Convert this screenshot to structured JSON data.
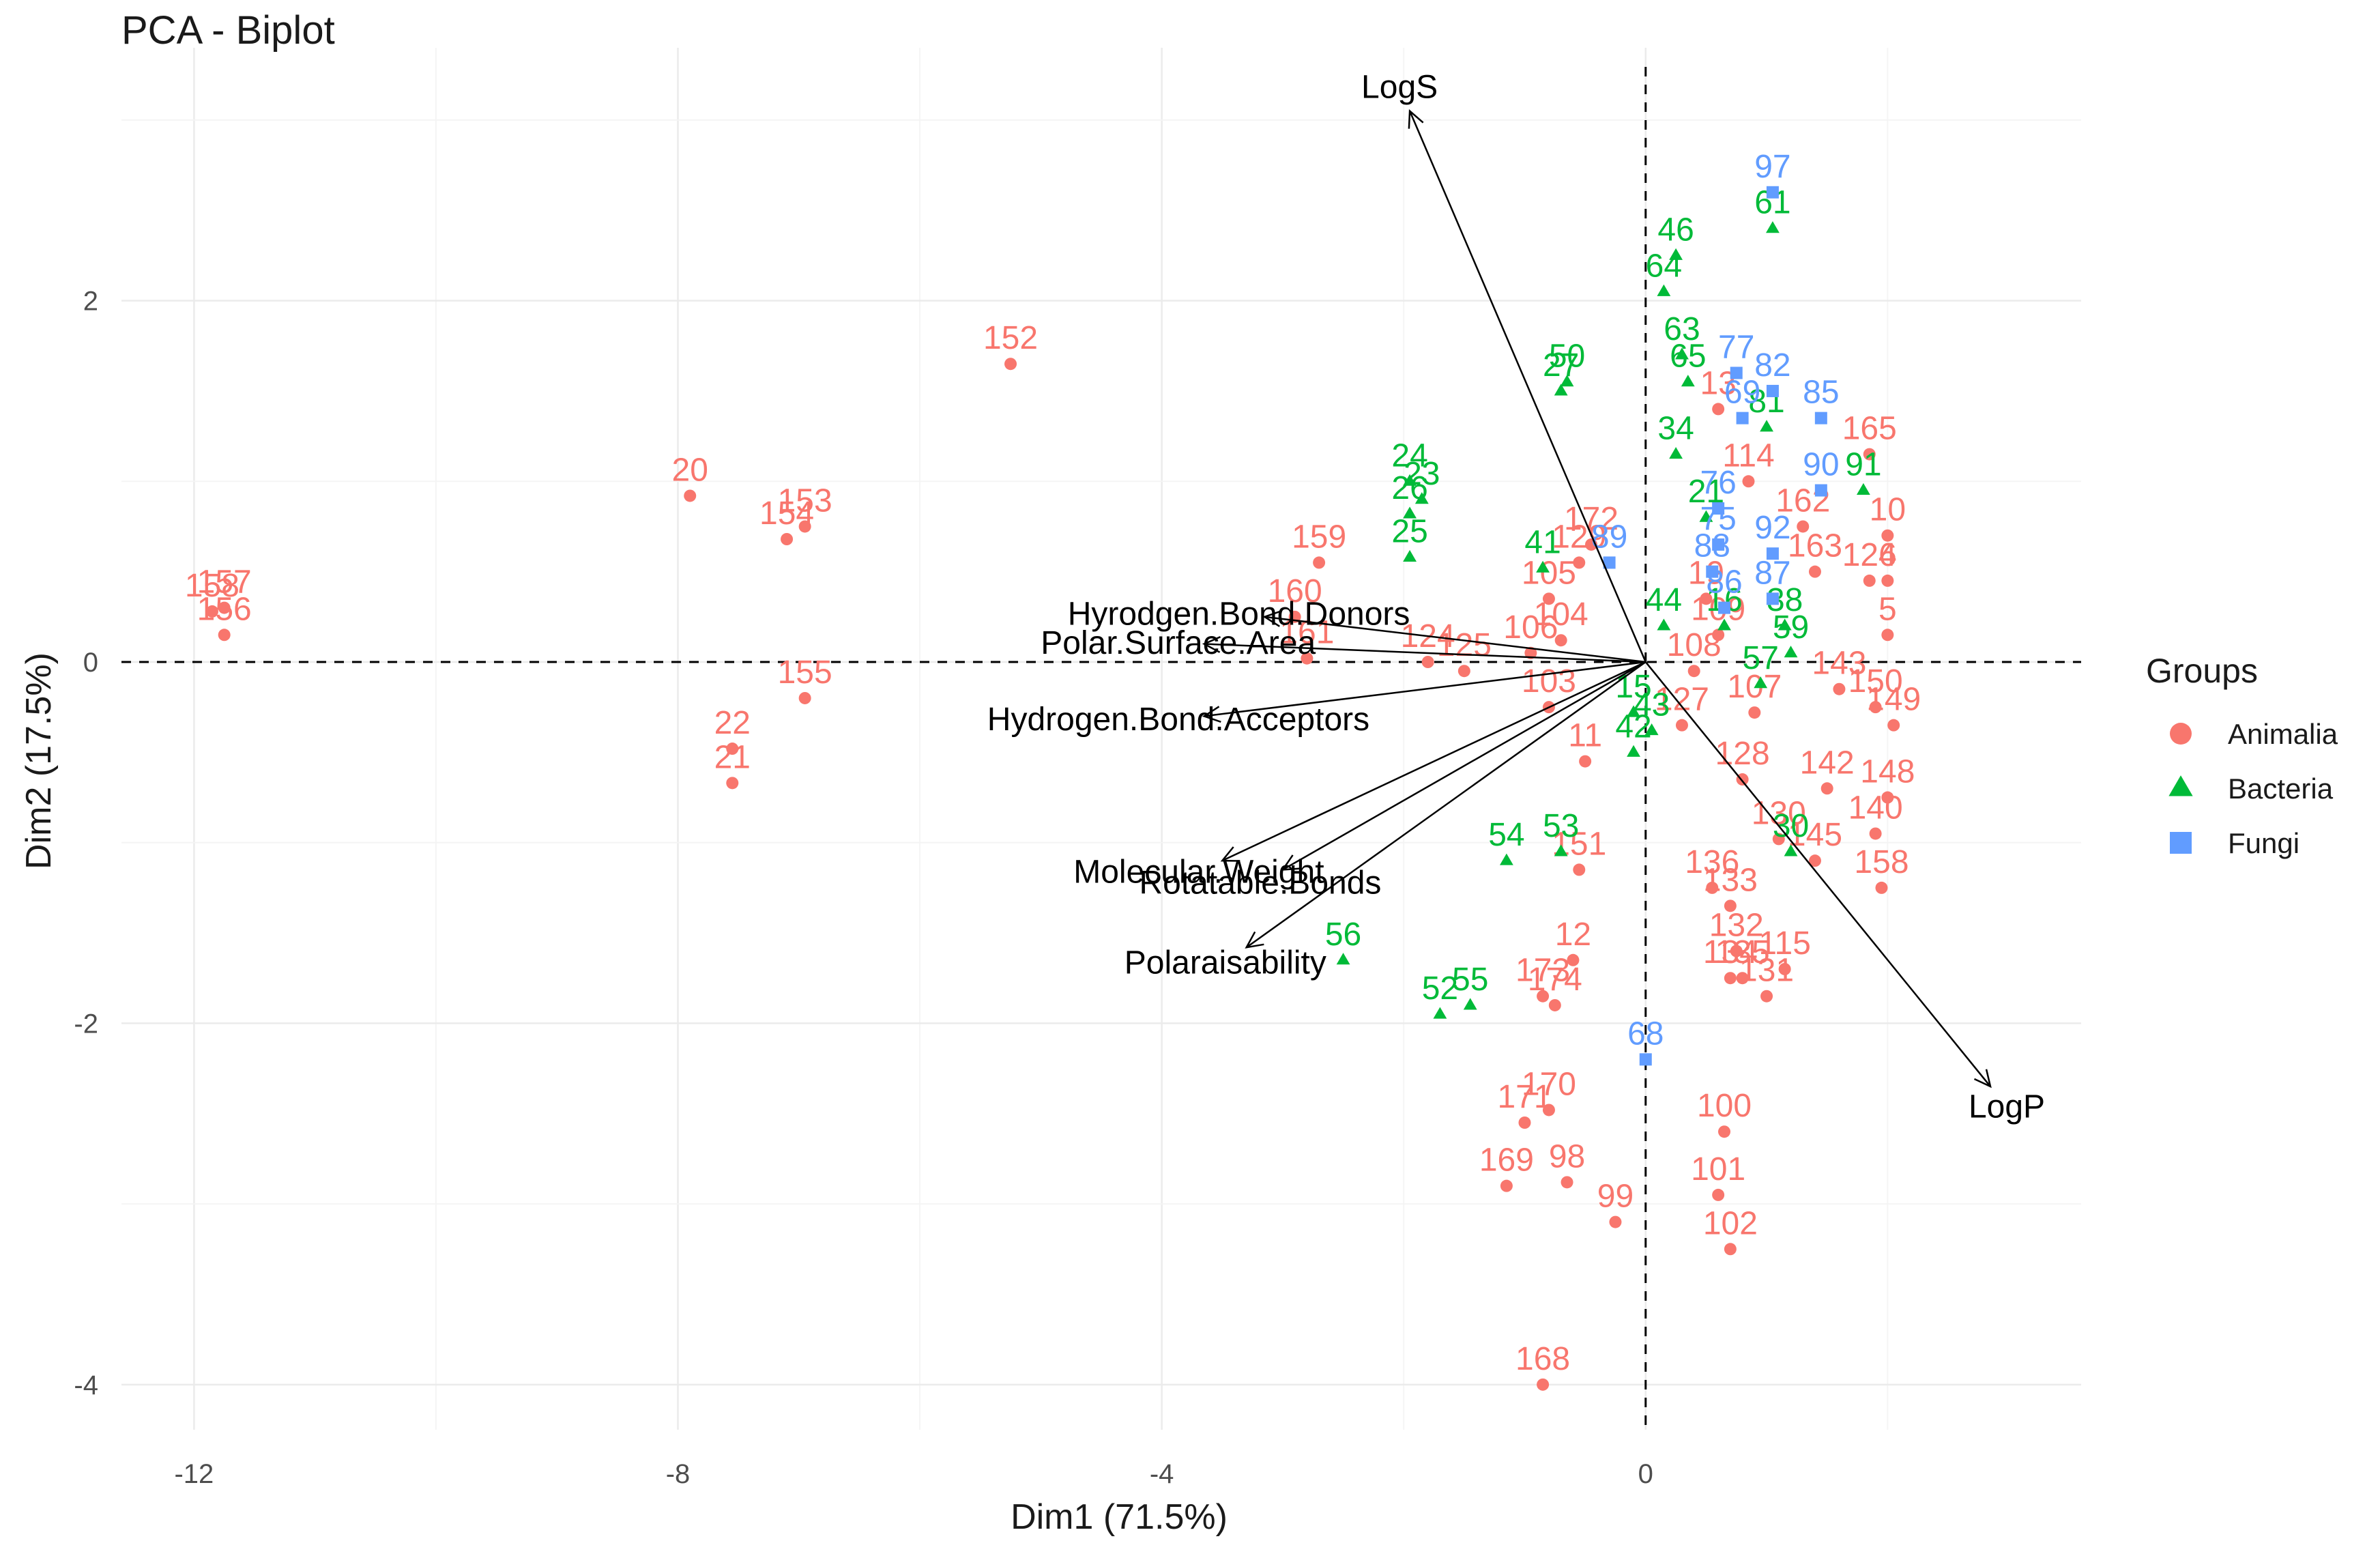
{
  "chart_data": {
    "type": "scatter",
    "title": "PCA - Biplot",
    "xlabel": "Dim1 (71.5%)",
    "ylabel": "Dim2 (17.5%)",
    "xlim": [
      -12.6,
      3.6
    ],
    "ylim": [
      -4.25,
      3.4
    ],
    "xticks": [
      -12,
      -8,
      -4,
      0
    ],
    "yticks": [
      -4,
      -2,
      0,
      2
    ],
    "legend": {
      "title": "Groups",
      "position": "right",
      "entries": [
        {
          "name": "Animalia",
          "color": "#F8766D",
          "shape": "circle"
        },
        {
          "name": "Bacteria",
          "color": "#00BA38",
          "shape": "triangle"
        },
        {
          "name": "Fungi",
          "color": "#619CFF",
          "shape": "square"
        }
      ]
    },
    "variables": [
      {
        "name": "LogS",
        "x": -1.95,
        "y": 3.05
      },
      {
        "name": "LogP",
        "x": 2.85,
        "y": -2.35
      },
      {
        "name": "Hyrodgen.Bond.Donors",
        "x": -3.15,
        "y": 0.25
      },
      {
        "name": "Polar.Surface.Area",
        "x": -3.65,
        "y": 0.1
      },
      {
        "name": "Hydrogen.Bond.Acceptors",
        "x": -3.65,
        "y": -0.3
      },
      {
        "name": "Molecular.Weight",
        "x": -3.5,
        "y": -1.1
      },
      {
        "name": "Rotatable.Bonds",
        "x": -3.0,
        "y": -1.15
      },
      {
        "name": "Polaraisability",
        "x": -3.3,
        "y": -1.58
      }
    ],
    "series": [
      {
        "name": "Animalia",
        "points": [
          {
            "label": "152",
            "x": -5.25,
            "y": 1.65
          },
          {
            "label": "20",
            "x": -7.9,
            "y": 0.92
          },
          {
            "label": "153",
            "x": -6.95,
            "y": 0.75
          },
          {
            "label": "154",
            "x": -7.1,
            "y": 0.68
          },
          {
            "label": "157",
            "x": -11.75,
            "y": 0.3
          },
          {
            "label": "158",
            "x": -11.85,
            "y": 0.28
          },
          {
            "label": "156",
            "x": -11.75,
            "y": 0.15
          },
          {
            "label": "155",
            "x": -6.95,
            "y": -0.2
          },
          {
            "label": "22",
            "x": -7.55,
            "y": -0.48
          },
          {
            "label": "21",
            "x": -7.55,
            "y": -0.67
          },
          {
            "label": "159",
            "x": -2.7,
            "y": 0.55
          },
          {
            "label": "160",
            "x": -2.9,
            "y": 0.25
          },
          {
            "label": "161",
            "x": -2.8,
            "y": 0.02
          },
          {
            "label": "124",
            "x": -1.8,
            "y": 0.0
          },
          {
            "label": "125",
            "x": -1.5,
            "y": -0.05
          },
          {
            "label": "105",
            "x": -0.8,
            "y": 0.35
          },
          {
            "label": "104",
            "x": -0.7,
            "y": 0.12
          },
          {
            "label": "106",
            "x": -0.95,
            "y": 0.05
          },
          {
            "label": "103",
            "x": -0.8,
            "y": -0.25
          },
          {
            "label": "172",
            "x": -0.45,
            "y": 0.65
          },
          {
            "label": "129",
            "x": -0.55,
            "y": 0.55
          },
          {
            "label": "11",
            "x": -0.5,
            "y": -0.55
          },
          {
            "label": "127",
            "x": 0.3,
            "y": -0.35
          },
          {
            "label": "151",
            "x": -0.55,
            "y": -1.15
          },
          {
            "label": "12",
            "x": -0.6,
            "y": -1.65
          },
          {
            "label": "173",
            "x": -0.85,
            "y": -1.85
          },
          {
            "label": "174",
            "x": -0.75,
            "y": -1.9
          },
          {
            "label": "171",
            "x": -1.0,
            "y": -2.55
          },
          {
            "label": "170",
            "x": -0.8,
            "y": -2.48
          },
          {
            "label": "169",
            "x": -1.15,
            "y": -2.9
          },
          {
            "label": "98",
            "x": -0.65,
            "y": -2.88
          },
          {
            "label": "99",
            "x": -0.25,
            "y": -3.1
          },
          {
            "label": "168",
            "x": -0.85,
            "y": -4.0
          },
          {
            "label": "100",
            "x": 0.65,
            "y": -2.6
          },
          {
            "label": "101",
            "x": 0.6,
            "y": -2.95
          },
          {
            "label": "102",
            "x": 0.7,
            "y": -3.25
          },
          {
            "label": "136",
            "x": 0.55,
            "y": -1.25
          },
          {
            "label": "133",
            "x": 0.7,
            "y": -1.35
          },
          {
            "label": "132",
            "x": 0.75,
            "y": -1.6
          },
          {
            "label": "115",
            "x": 1.15,
            "y": -1.7
          },
          {
            "label": "134",
            "x": 0.7,
            "y": -1.75
          },
          {
            "label": "135",
            "x": 0.8,
            "y": -1.75
          },
          {
            "label": "131",
            "x": 1.0,
            "y": -1.85
          },
          {
            "label": "128",
            "x": 0.8,
            "y": -0.65
          },
          {
            "label": "130",
            "x": 1.1,
            "y": -0.98
          },
          {
            "label": "145",
            "x": 1.4,
            "y": -1.1
          },
          {
            "label": "158",
            "x": 1.95,
            "y": -1.25
          },
          {
            "label": "140",
            "x": 1.9,
            "y": -0.95
          },
          {
            "label": "142",
            "x": 1.5,
            "y": -0.7
          },
          {
            "label": "148",
            "x": 2.0,
            "y": -0.75
          },
          {
            "label": "150",
            "x": 1.9,
            "y": -0.25
          },
          {
            "label": "149",
            "x": 2.05,
            "y": -0.35
          },
          {
            "label": "143",
            "x": 1.6,
            "y": -0.15
          },
          {
            "label": "107",
            "x": 0.9,
            "y": -0.28
          },
          {
            "label": "108",
            "x": 0.4,
            "y": -0.05
          },
          {
            "label": "109",
            "x": 0.6,
            "y": 0.15
          },
          {
            "label": "165",
            "x": 1.85,
            "y": 1.15
          },
          {
            "label": "162",
            "x": 1.3,
            "y": 0.75
          },
          {
            "label": "10",
            "x": 2.0,
            "y": 0.7
          },
          {
            "label": "163",
            "x": 1.4,
            "y": 0.5
          },
          {
            "label": "126",
            "x": 1.85,
            "y": 0.45
          },
          {
            "label": "4",
            "x": 2.0,
            "y": 0.45
          },
          {
            "label": "5",
            "x": 2.0,
            "y": 0.15
          },
          {
            "label": "13",
            "x": 0.6,
            "y": 1.4
          },
          {
            "label": "114",
            "x": 0.85,
            "y": 1.0
          },
          {
            "label": "19",
            "x": 0.5,
            "y": 0.35
          }
        ]
      },
      {
        "name": "Bacteria",
        "points": [
          {
            "label": "61",
            "x": 1.05,
            "y": 2.4
          },
          {
            "label": "46",
            "x": 0.25,
            "y": 2.25
          },
          {
            "label": "64",
            "x": 0.15,
            "y": 2.05
          },
          {
            "label": "50",
            "x": -0.65,
            "y": 1.55
          },
          {
            "label": "27",
            "x": -0.7,
            "y": 1.5
          },
          {
            "label": "63",
            "x": 0.3,
            "y": 1.7
          },
          {
            "label": "65",
            "x": 0.35,
            "y": 1.55
          },
          {
            "label": "34",
            "x": 0.25,
            "y": 1.15
          },
          {
            "label": "24",
            "x": -1.95,
            "y": 1.0
          },
          {
            "label": "23",
            "x": -1.85,
            "y": 0.9
          },
          {
            "label": "26",
            "x": -1.95,
            "y": 0.82
          },
          {
            "label": "25",
            "x": -1.95,
            "y": 0.58
          },
          {
            "label": "41",
            "x": -0.85,
            "y": 0.52
          },
          {
            "label": "21",
            "x": 0.5,
            "y": 0.8
          },
          {
            "label": "44",
            "x": 0.15,
            "y": 0.2
          },
          {
            "label": "16",
            "x": 0.65,
            "y": 0.2
          },
          {
            "label": "38",
            "x": 1.15,
            "y": 0.2
          },
          {
            "label": "15",
            "x": -0.1,
            "y": -0.28
          },
          {
            "label": "43",
            "x": 0.05,
            "y": -0.38
          },
          {
            "label": "42",
            "x": -0.1,
            "y": -0.5
          },
          {
            "label": "57",
            "x": 0.95,
            "y": -0.12
          },
          {
            "label": "59",
            "x": 1.2,
            "y": 0.05
          },
          {
            "label": "54",
            "x": -1.15,
            "y": -1.1
          },
          {
            "label": "53",
            "x": -0.7,
            "y": -1.05
          },
          {
            "label": "56",
            "x": -2.5,
            "y": -1.65
          },
          {
            "label": "52",
            "x": -1.7,
            "y": -1.95
          },
          {
            "label": "55",
            "x": -1.45,
            "y": -1.9
          },
          {
            "label": "91",
            "x": 1.8,
            "y": 0.95
          },
          {
            "label": "81",
            "x": 1.0,
            "y": 1.3
          },
          {
            "label": "30",
            "x": 1.2,
            "y": -1.05
          }
        ]
      },
      {
        "name": "Fungi",
        "points": [
          {
            "label": "97",
            "x": 1.05,
            "y": 2.6
          },
          {
            "label": "77",
            "x": 0.75,
            "y": 1.6
          },
          {
            "label": "82",
            "x": 1.05,
            "y": 1.5
          },
          {
            "label": "85",
            "x": 1.45,
            "y": 1.35
          },
          {
            "label": "69",
            "x": 0.8,
            "y": 1.35
          },
          {
            "label": "90",
            "x": 1.45,
            "y": 0.95
          },
          {
            "label": "76",
            "x": 0.6,
            "y": 0.85
          },
          {
            "label": "75",
            "x": 0.6,
            "y": 0.65
          },
          {
            "label": "89",
            "x": -0.3,
            "y": 0.55
          },
          {
            "label": "88",
            "x": 0.55,
            "y": 0.5
          },
          {
            "label": "87",
            "x": 1.05,
            "y": 0.35
          },
          {
            "label": "92",
            "x": 1.05,
            "y": 0.6
          },
          {
            "label": "86",
            "x": 0.65,
            "y": 0.3
          },
          {
            "label": "68",
            "x": 0.0,
            "y": -2.2
          }
        ]
      }
    ]
  }
}
